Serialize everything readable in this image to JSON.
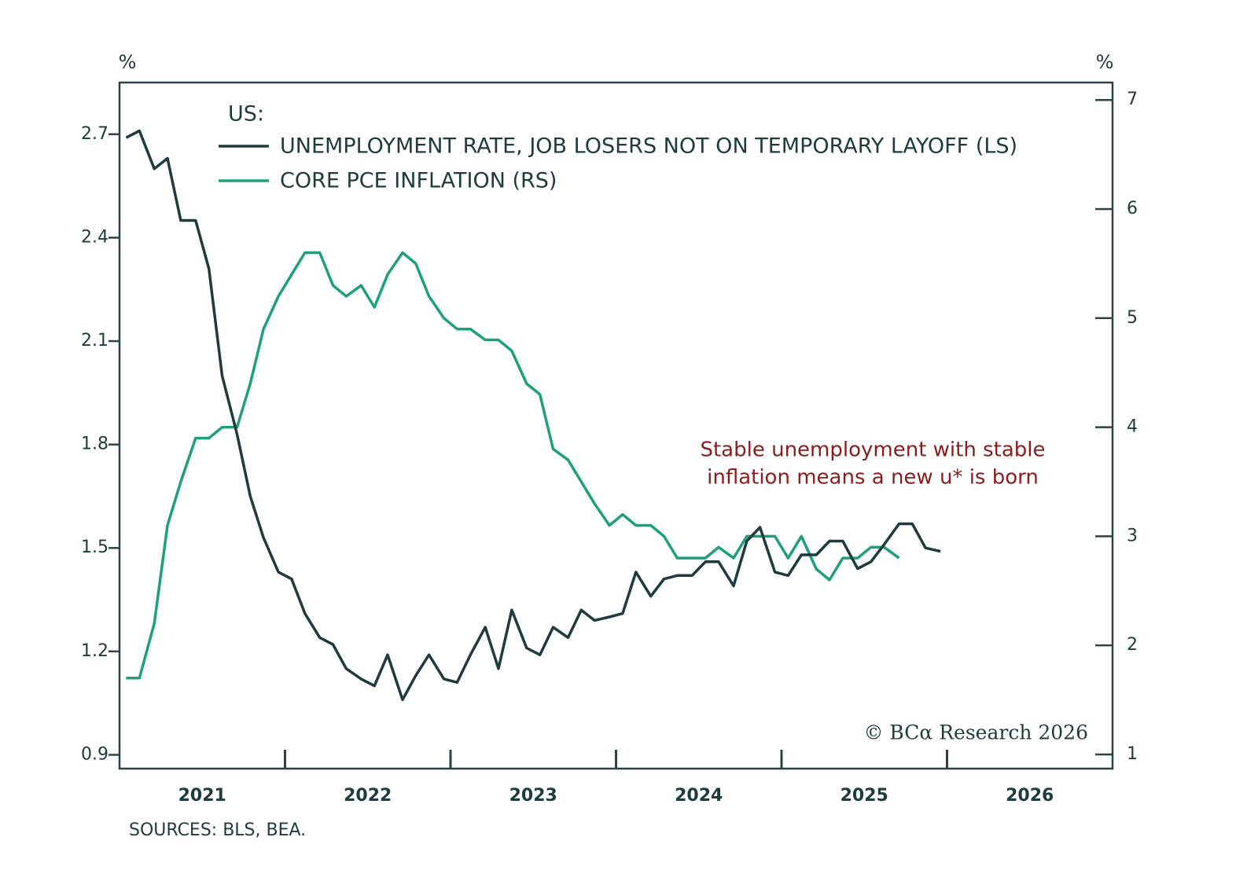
{
  "chart_data": {
    "type": "line",
    "legend_title": "US:",
    "left_unit": "%",
    "right_unit": "%",
    "annotation": [
      "Stable unemployment with stable",
      "inflation means a new u* is born"
    ],
    "credit": "© BCα Research 2026",
    "source": "SOURCES: BLS, BEA.",
    "xlim": [
      2021,
      2027
    ],
    "xticks": [
      {
        "value": 2021.5,
        "label": "2021"
      },
      {
        "value": 2022.5,
        "label": "2022"
      },
      {
        "value": 2023.5,
        "label": "2023"
      },
      {
        "value": 2024.5,
        "label": "2024"
      },
      {
        "value": 2025.5,
        "label": "2025"
      },
      {
        "value": 2026.5,
        "label": "2026"
      }
    ],
    "xtick_marks": [
      2022,
      2023,
      2024,
      2025,
      2026
    ],
    "ylim": [
      0.86,
      2.85
    ],
    "yticks": [
      0.9,
      1.2,
      1.5,
      1.8,
      2.1,
      2.4,
      2.7
    ],
    "y2lim": [
      0.87,
      7.16
    ],
    "y2ticks": [
      1,
      2,
      3,
      4,
      5,
      6,
      7
    ],
    "series": [
      {
        "name": "UNEMPLOYMENT RATE, JOB LOSERS NOT ON TEMPORARY LAYOFF (LS)",
        "color": "#1e3b3e",
        "x": [
          2021.04,
          2021.12,
          2021.21,
          2021.29,
          2021.37,
          2021.46,
          2021.54,
          2021.62,
          2021.71,
          2021.79,
          2021.87,
          2021.96,
          2022.04,
          2022.12,
          2022.21,
          2022.29,
          2022.37,
          2022.46,
          2022.54,
          2022.62,
          2022.71,
          2022.79,
          2022.87,
          2022.96,
          2023.04,
          2023.12,
          2023.21,
          2023.29,
          2023.37,
          2023.46,
          2023.54,
          2023.62,
          2023.71,
          2023.79,
          2023.87,
          2023.96,
          2024.04,
          2024.12,
          2024.21,
          2024.29,
          2024.37,
          2024.46,
          2024.54,
          2024.62,
          2024.71,
          2024.79,
          2024.87,
          2024.96,
          2025.04,
          2025.12,
          2025.21,
          2025.29,
          2025.37,
          2025.46,
          2025.54,
          2025.62,
          2025.71,
          2025.79,
          2025.87,
          2025.96
        ],
        "values": [
          2.69,
          2.71,
          2.6,
          2.63,
          2.45,
          2.45,
          2.31,
          2.0,
          1.83,
          1.65,
          1.53,
          1.43,
          1.41,
          1.31,
          1.24,
          1.22,
          1.15,
          1.12,
          1.1,
          1.19,
          1.06,
          1.13,
          1.19,
          1.12,
          1.11,
          1.19,
          1.27,
          1.15,
          1.32,
          1.21,
          1.19,
          1.27,
          1.24,
          1.32,
          1.29,
          1.3,
          1.31,
          1.43,
          1.36,
          1.41,
          1.42,
          1.42,
          1.46,
          1.46,
          1.39,
          1.52,
          1.56,
          1.43,
          1.42,
          1.48,
          1.48,
          1.52,
          1.52,
          1.44,
          1.46,
          1.51,
          1.57,
          1.57,
          1.5,
          1.49
        ]
      },
      {
        "name": "CORE PCE INFLATION (RS)",
        "color": "#1fa07c",
        "axis": "y2",
        "x": [
          2021.04,
          2021.12,
          2021.21,
          2021.29,
          2021.37,
          2021.46,
          2021.54,
          2021.62,
          2021.71,
          2021.79,
          2021.87,
          2021.96,
          2022.04,
          2022.12,
          2022.21,
          2022.29,
          2022.37,
          2022.46,
          2022.54,
          2022.62,
          2022.71,
          2022.79,
          2022.87,
          2022.96,
          2023.04,
          2023.12,
          2023.21,
          2023.29,
          2023.37,
          2023.46,
          2023.54,
          2023.62,
          2023.71,
          2023.79,
          2023.87,
          2023.96,
          2024.04,
          2024.12,
          2024.21,
          2024.29,
          2024.37,
          2024.46,
          2024.54,
          2024.62,
          2024.71,
          2024.79,
          2024.87,
          2024.96,
          2025.04,
          2025.12,
          2025.21,
          2025.29,
          2025.37,
          2025.46,
          2025.54,
          2025.62,
          2025.71
        ],
        "values": [
          1.7,
          1.7,
          2.2,
          3.1,
          3.5,
          3.9,
          3.9,
          4.0,
          4.0,
          4.4,
          4.9,
          5.2,
          5.4,
          5.6,
          5.6,
          5.3,
          5.2,
          5.3,
          5.1,
          5.4,
          5.6,
          5.5,
          5.2,
          5.0,
          4.9,
          4.9,
          4.8,
          4.8,
          4.7,
          4.4,
          4.3,
          3.8,
          3.7,
          3.5,
          3.3,
          3.1,
          3.2,
          3.1,
          3.1,
          3.0,
          2.8,
          2.8,
          2.8,
          2.9,
          2.8,
          3.0,
          3.0,
          3.0,
          2.8,
          3.0,
          2.7,
          2.6,
          2.8,
          2.8,
          2.9,
          2.9,
          2.8
        ]
      }
    ]
  }
}
